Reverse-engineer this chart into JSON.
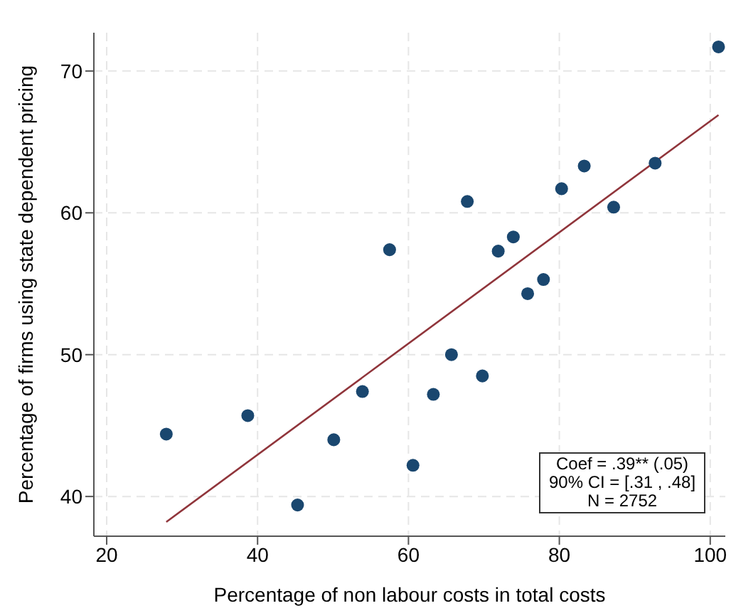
{
  "chart_data": {
    "type": "scatter",
    "xlabel": "Percentage of non labour costs in total costs",
    "ylabel": "Percentage of firms using state dependent pricing",
    "xlim": [
      18.3,
      102
    ],
    "ylim": [
      37.2,
      72.7
    ],
    "xticks": [
      20,
      40,
      60,
      80,
      100
    ],
    "yticks": [
      40,
      50,
      60,
      70
    ],
    "grid": true,
    "annotations": [
      "Coef = .39**  (.05)",
      "90% CI = [.31 , .48]",
      "N = 2752"
    ],
    "series": [
      {
        "marker": "circle",
        "color": "#1a476f",
        "x": [
          27.9,
          38.7,
          45.3,
          50.1,
          53.9,
          57.5,
          60.6,
          63.3,
          65.7,
          67.8,
          69.8,
          71.9,
          73.9,
          75.8,
          77.9,
          80.3,
          83.3,
          87.2,
          92.7,
          101.1
        ],
        "values": [
          44.4,
          45.7,
          39.4,
          44.0,
          47.4,
          57.4,
          42.2,
          47.2,
          50.0,
          60.8,
          48.5,
          57.3,
          58.3,
          54.3,
          55.3,
          61.7,
          63.3,
          60.4,
          63.5,
          71.7
        ]
      },
      {
        "type": "line",
        "marker": "none",
        "color": "#90353b",
        "x": [
          27.9,
          101.1
        ],
        "values": [
          38.2,
          66.9
        ]
      }
    ]
  }
}
